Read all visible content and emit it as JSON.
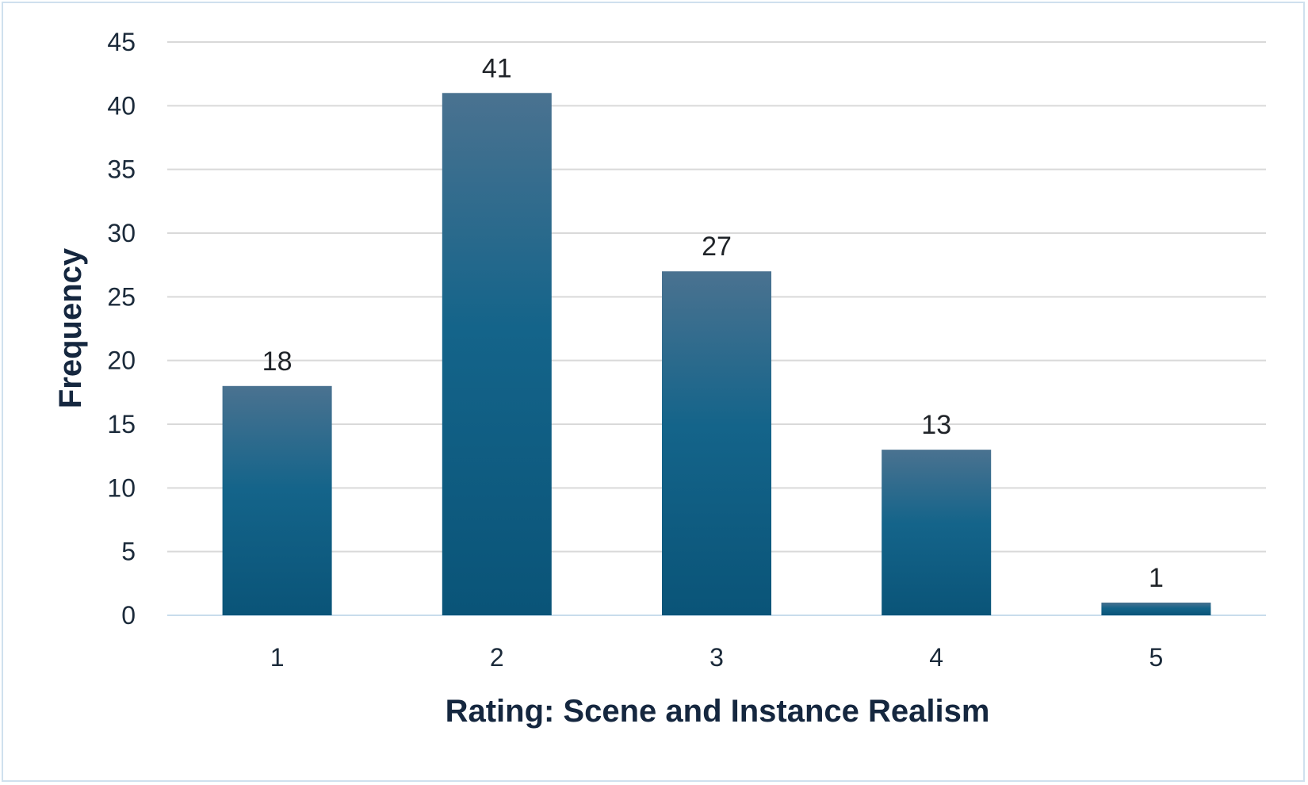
{
  "chart_data": {
    "type": "bar",
    "categories": [
      "1",
      "2",
      "3",
      "4",
      "5"
    ],
    "values": [
      18,
      41,
      27,
      13,
      1
    ],
    "data_labels": [
      "18",
      "41",
      "27",
      "13",
      "1"
    ],
    "xlabel": "Rating: Scene and Instance Realism",
    "ylabel": "Frequency",
    "ylim": [
      0,
      45
    ],
    "yticks": [
      0,
      5,
      10,
      15,
      20,
      25,
      30,
      35,
      40,
      45
    ],
    "ytick_labels": [
      "0",
      "5",
      "10",
      "15",
      "20",
      "25",
      "30",
      "35",
      "40",
      "45"
    ],
    "grid": true,
    "legend": "none",
    "colors": {
      "bar_top": "#4a7290",
      "bar_mid": "#14648a",
      "bar_bottom": "#0a5478",
      "gridline": "#d9d9d9",
      "axis_line": "#c8dcec"
    }
  }
}
